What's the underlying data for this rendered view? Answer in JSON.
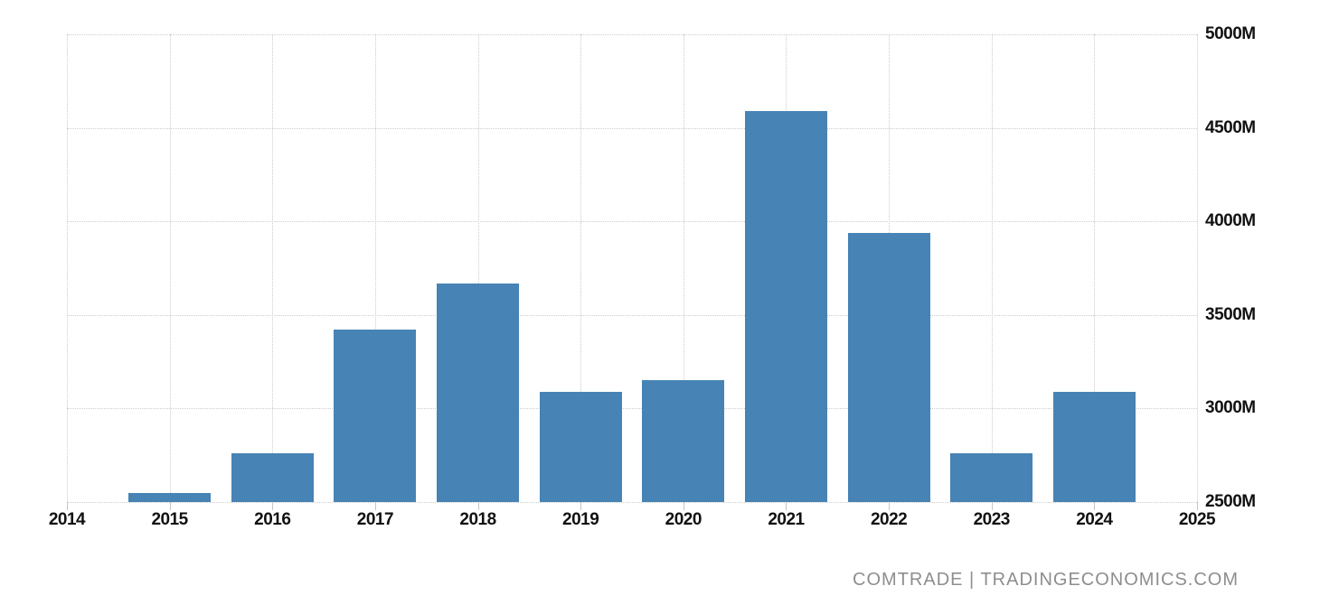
{
  "chart_data": {
    "type": "bar",
    "title": "",
    "categories": [
      "2015",
      "2016",
      "2017",
      "2018",
      "2019",
      "2020",
      "2021",
      "2022",
      "2023",
      "2024"
    ],
    "values": [
      2550,
      2760,
      3420,
      3670,
      3090,
      3150,
      4590,
      3940,
      2760,
      3090
    ],
    "value_unit": "M",
    "x_ticks": [
      "2014",
      "2015",
      "2016",
      "2017",
      "2018",
      "2019",
      "2020",
      "2021",
      "2022",
      "2023",
      "2024",
      "2025"
    ],
    "y_ticks": [
      {
        "value": 5000,
        "label": "5000M"
      },
      {
        "value": 4500,
        "label": "4500M"
      },
      {
        "value": 4000,
        "label": "4000M"
      },
      {
        "value": 3500,
        "label": "3500M"
      },
      {
        "value": 3000,
        "label": "3000M"
      },
      {
        "value": 2500,
        "label": "2500M"
      }
    ],
    "ylim": [
      2500,
      5000
    ],
    "xlabel": "",
    "ylabel": "",
    "grid": true,
    "legend": "none",
    "colors": {
      "bar": "#4783b4",
      "gridline": "#cccccc",
      "axis_text": "#111111",
      "background": "#ffffff"
    }
  },
  "watermark": {
    "text": "COMTRADE | TRADINGECONOMICS.COM",
    "color": "#8e8e8e"
  }
}
